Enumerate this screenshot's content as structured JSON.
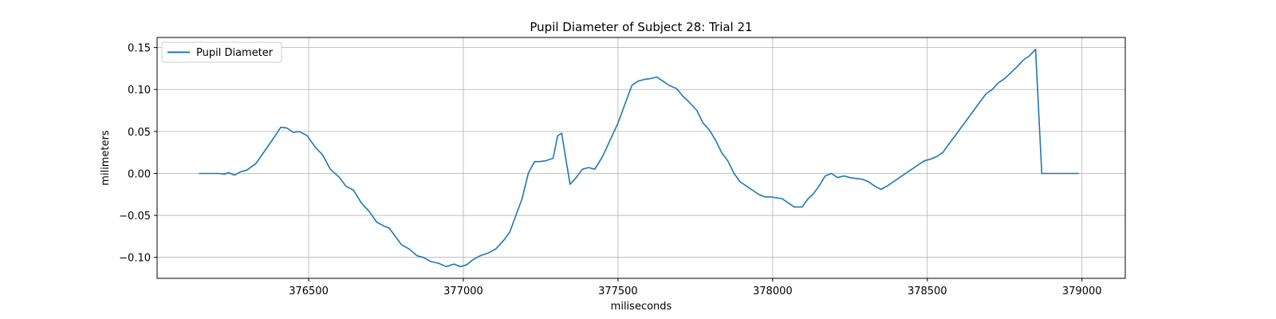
{
  "chart_data": {
    "type": "line",
    "title": "Pupil Diameter of Subject 28: Trial 21",
    "xlabel": "miliseconds",
    "ylabel": "milimeters",
    "xlim": [
      376010,
      379140
    ],
    "ylim": [
      -0.125,
      0.162
    ],
    "xticks": [
      376500,
      377000,
      377500,
      378000,
      378500,
      379000
    ],
    "xtick_labels": [
      "376500",
      "377000",
      "377500",
      "378000",
      "378500",
      "379000"
    ],
    "yticks": [
      -0.1,
      -0.05,
      0.0,
      0.05,
      0.1,
      0.15
    ],
    "ytick_labels": [
      "−0.10",
      "−0.05",
      "0.00",
      "0.05",
      "0.10",
      "0.15"
    ],
    "grid": true,
    "legend_position": "upper-left",
    "series": [
      {
        "name": "Pupil Diameter",
        "color": "#1f77b4",
        "x": [
          376145,
          376180,
          376210,
          376228,
          376240,
          376260,
          376280,
          376300,
          376330,
          376360,
          376390,
          376410,
          376430,
          376450,
          376470,
          376495,
          376520,
          376545,
          376570,
          376600,
          376620,
          376645,
          376670,
          376695,
          376720,
          376745,
          376760,
          376780,
          376800,
          376825,
          376850,
          376870,
          376895,
          376920,
          376945,
          376970,
          376990,
          377010,
          377030,
          377055,
          377080,
          377105,
          377130,
          377150,
          377170,
          377190,
          377210,
          377230,
          377245,
          377265,
          377290,
          377305,
          377318,
          377330,
          377345,
          377365,
          377385,
          377405,
          377425,
          377450,
          377475,
          377500,
          377525,
          377545,
          377565,
          377585,
          377605,
          377625,
          377645,
          377665,
          377690,
          377710,
          377730,
          377755,
          377775,
          377795,
          377815,
          377835,
          377855,
          377875,
          377895,
          377915,
          377935,
          377955,
          377975,
          377995,
          378010,
          378030,
          378050,
          378070,
          378095,
          378115,
          378130,
          378150,
          378170,
          378190,
          378210,
          378230,
          378250,
          378270,
          378290,
          378310,
          378330,
          378350,
          378370,
          378390,
          378410,
          378430,
          378450,
          378470,
          378490,
          378510,
          378530,
          378550,
          378570,
          378590,
          378610,
          378630,
          378650,
          378670,
          378690,
          378710,
          378730,
          378750,
          378770,
          378790,
          378810,
          378830,
          378850,
          378870,
          378890,
          378910,
          378930,
          378950,
          378970,
          378990
        ],
        "y": [
          0.0,
          0.0,
          0.0,
          -0.001,
          0.001,
          -0.002,
          0.002,
          0.004,
          0.012,
          0.028,
          0.044,
          0.055,
          0.054,
          0.049,
          0.05,
          0.045,
          0.032,
          0.022,
          0.005,
          -0.005,
          -0.015,
          -0.02,
          -0.035,
          -0.045,
          -0.058,
          -0.063,
          -0.065,
          -0.075,
          -0.085,
          -0.09,
          -0.098,
          -0.1,
          -0.105,
          -0.107,
          -0.111,
          -0.108,
          -0.111,
          -0.109,
          -0.103,
          -0.098,
          -0.095,
          -0.09,
          -0.08,
          -0.07,
          -0.05,
          -0.03,
          0.0,
          0.014,
          0.014,
          0.015,
          0.018,
          0.045,
          0.048,
          0.02,
          -0.013,
          -0.005,
          0.005,
          0.007,
          0.005,
          0.02,
          0.04,
          0.06,
          0.085,
          0.105,
          0.11,
          0.112,
          0.113,
          0.115,
          0.11,
          0.105,
          0.101,
          0.092,
          0.085,
          0.075,
          0.06,
          0.052,
          0.04,
          0.025,
          0.015,
          0.0,
          -0.01,
          -0.015,
          -0.02,
          -0.025,
          -0.028,
          -0.028,
          -0.029,
          -0.03,
          -0.035,
          -0.04,
          -0.04,
          -0.03,
          -0.025,
          -0.015,
          -0.003,
          0.0,
          -0.005,
          -0.003,
          -0.005,
          -0.006,
          -0.007,
          -0.01,
          -0.015,
          -0.019,
          -0.015,
          -0.01,
          -0.005,
          0.0,
          0.005,
          0.01,
          0.015,
          0.017,
          0.02,
          0.025,
          0.035,
          0.045,
          0.055,
          0.065,
          0.075,
          0.085,
          0.095,
          0.1,
          0.108,
          0.113,
          0.12,
          0.127,
          0.135,
          0.14,
          0.148,
          0.0,
          0.0,
          0.0,
          0.0,
          0.0,
          0.0,
          0.0
        ]
      }
    ]
  }
}
